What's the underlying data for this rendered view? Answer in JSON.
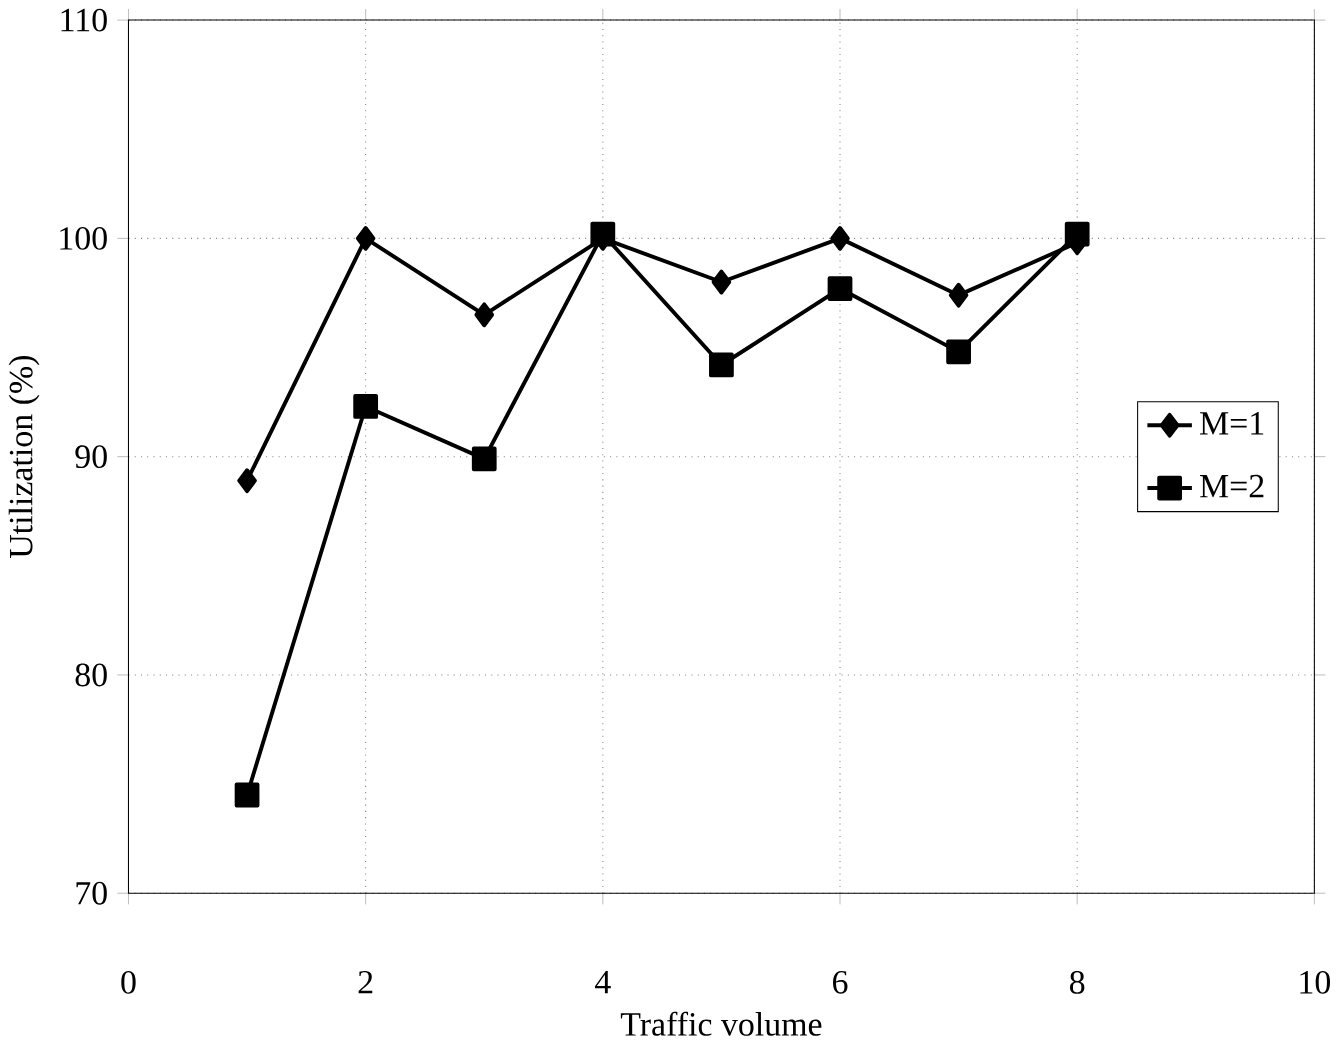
{
  "chart_data": {
    "type": "line",
    "xlabel": "Traffic volume",
    "ylabel": "Utilization (%)",
    "x": [
      1,
      2,
      3,
      4,
      5,
      6,
      7,
      8
    ],
    "series": [
      {
        "name": "M=1",
        "color": "#000000",
        "marker": "diamond",
        "values": [
          88.9,
          100,
          96.5,
          100,
          98,
          100,
          97.4,
          99.8
        ]
      },
      {
        "name": "M=2",
        "color": "#000000",
        "marker": "square",
        "values": [
          74.5,
          92.3,
          89.9,
          100.2,
          94.2,
          97.7,
          94.8,
          100.2
        ]
      }
    ],
    "xlim": [
      0,
      10
    ],
    "xticks": [
      0,
      2,
      4,
      6,
      8,
      10
    ],
    "ylim": [
      70,
      110
    ],
    "yticks": [
      70,
      80,
      90,
      100,
      110
    ],
    "grid": true,
    "legend": "right",
    "line_style": "solid"
  }
}
